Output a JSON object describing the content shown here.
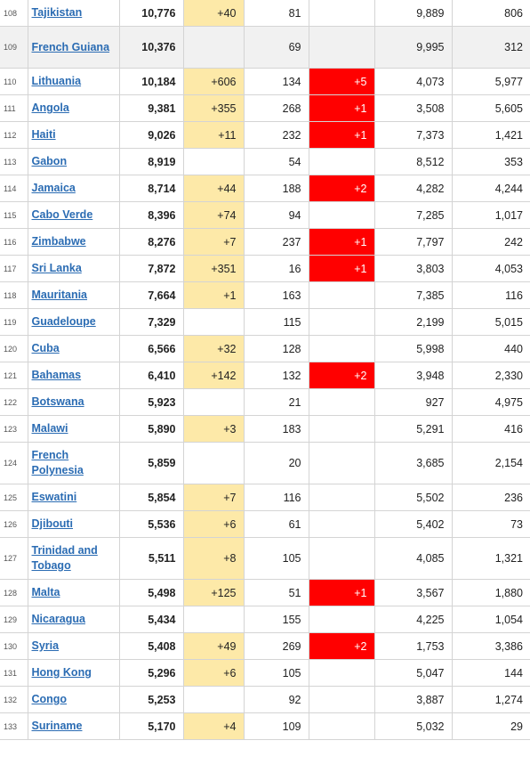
{
  "table": {
    "rows": [
      {
        "rank": "108",
        "country": "Tajikistan",
        "total": "10,776",
        "new_cases": "+40",
        "deaths": "81",
        "new_deaths": "",
        "recovered": "9,889",
        "active": "806"
      },
      {
        "rank": "109",
        "country": "French Guiana",
        "total": "10,376",
        "new_cases": "",
        "deaths": "69",
        "new_deaths": "",
        "recovered": "9,995",
        "active": "312"
      },
      {
        "rank": "110",
        "country": "Lithuania",
        "total": "10,184",
        "new_cases": "+606",
        "deaths": "134",
        "new_deaths": "+5",
        "recovered": "4,073",
        "active": "5,977"
      },
      {
        "rank": "111",
        "country": "Angola",
        "total": "9,381",
        "new_cases": "+355",
        "deaths": "268",
        "new_deaths": "+1",
        "recovered": "3,508",
        "active": "5,605"
      },
      {
        "rank": "112",
        "country": "Haiti",
        "total": "9,026",
        "new_cases": "+11",
        "deaths": "232",
        "new_deaths": "+1",
        "recovered": "7,373",
        "active": "1,421"
      },
      {
        "rank": "113",
        "country": "Gabon",
        "total": "8,919",
        "new_cases": "",
        "deaths": "54",
        "new_deaths": "",
        "recovered": "8,512",
        "active": "353"
      },
      {
        "rank": "114",
        "country": "Jamaica",
        "total": "8,714",
        "new_cases": "+44",
        "deaths": "188",
        "new_deaths": "+2",
        "recovered": "4,282",
        "active": "4,244"
      },
      {
        "rank": "115",
        "country": "Cabo Verde",
        "total": "8,396",
        "new_cases": "+74",
        "deaths": "94",
        "new_deaths": "",
        "recovered": "7,285",
        "active": "1,017"
      },
      {
        "rank": "116",
        "country": "Zimbabwe",
        "total": "8,276",
        "new_cases": "+7",
        "deaths": "237",
        "new_deaths": "+1",
        "recovered": "7,797",
        "active": "242"
      },
      {
        "rank": "117",
        "country": "Sri Lanka",
        "total": "7,872",
        "new_cases": "+351",
        "deaths": "16",
        "new_deaths": "+1",
        "recovered": "3,803",
        "active": "4,053"
      },
      {
        "rank": "118",
        "country": "Mauritania",
        "total": "7,664",
        "new_cases": "+1",
        "deaths": "163",
        "new_deaths": "",
        "recovered": "7,385",
        "active": "116"
      },
      {
        "rank": "119",
        "country": "Guadeloupe",
        "total": "7,329",
        "new_cases": "",
        "deaths": "115",
        "new_deaths": "",
        "recovered": "2,199",
        "active": "5,015"
      },
      {
        "rank": "120",
        "country": "Cuba",
        "total": "6,566",
        "new_cases": "+32",
        "deaths": "128",
        "new_deaths": "",
        "recovered": "5,998",
        "active": "440"
      },
      {
        "rank": "121",
        "country": "Bahamas",
        "total": "6,410",
        "new_cases": "+142",
        "deaths": "132",
        "new_deaths": "+2",
        "recovered": "3,948",
        "active": "2,330"
      },
      {
        "rank": "122",
        "country": "Botswana",
        "total": "5,923",
        "new_cases": "",
        "deaths": "21",
        "new_deaths": "",
        "recovered": "927",
        "active": "4,975"
      },
      {
        "rank": "123",
        "country": "Malawi",
        "total": "5,890",
        "new_cases": "+3",
        "deaths": "183",
        "new_deaths": "",
        "recovered": "5,291",
        "active": "416"
      },
      {
        "rank": "124",
        "country": "French Polynesia",
        "total": "5,859",
        "new_cases": "",
        "deaths": "20",
        "new_deaths": "",
        "recovered": "3,685",
        "active": "2,154"
      },
      {
        "rank": "125",
        "country": "Eswatini",
        "total": "5,854",
        "new_cases": "+7",
        "deaths": "116",
        "new_deaths": "",
        "recovered": "5,502",
        "active": "236"
      },
      {
        "rank": "126",
        "country": "Djibouti",
        "total": "5,536",
        "new_cases": "+6",
        "deaths": "61",
        "new_deaths": "",
        "recovered": "5,402",
        "active": "73"
      },
      {
        "rank": "127",
        "country": "Trinidad and Tobago",
        "total": "5,511",
        "new_cases": "+8",
        "deaths": "105",
        "new_deaths": "",
        "recovered": "4,085",
        "active": "1,321"
      },
      {
        "rank": "128",
        "country": "Malta",
        "total": "5,498",
        "new_cases": "+125",
        "deaths": "51",
        "new_deaths": "+1",
        "recovered": "3,567",
        "active": "1,880"
      },
      {
        "rank": "129",
        "country": "Nicaragua",
        "total": "5,434",
        "new_cases": "",
        "deaths": "155",
        "new_deaths": "",
        "recovered": "4,225",
        "active": "1,054"
      },
      {
        "rank": "130",
        "country": "Syria",
        "total": "5,408",
        "new_cases": "+49",
        "deaths": "269",
        "new_deaths": "+2",
        "recovered": "1,753",
        "active": "3,386"
      },
      {
        "rank": "131",
        "country": "Hong Kong",
        "total": "5,296",
        "new_cases": "+6",
        "deaths": "105",
        "new_deaths": "",
        "recovered": "5,047",
        "active": "144"
      },
      {
        "rank": "132",
        "country": "Congo",
        "total": "5,253",
        "new_cases": "",
        "deaths": "92",
        "new_deaths": "",
        "recovered": "3,887",
        "active": "1,274"
      },
      {
        "rank": "133",
        "country": "Suriname",
        "total": "5,170",
        "new_cases": "+4",
        "deaths": "109",
        "new_deaths": "",
        "recovered": "5,032",
        "active": "29"
      }
    ]
  },
  "colors": {
    "new_cases_highlight": "#fde9a8",
    "new_deaths_highlight": "#ff0000",
    "link": "#2b6cb3",
    "alt_row": "#f1f1f1"
  }
}
